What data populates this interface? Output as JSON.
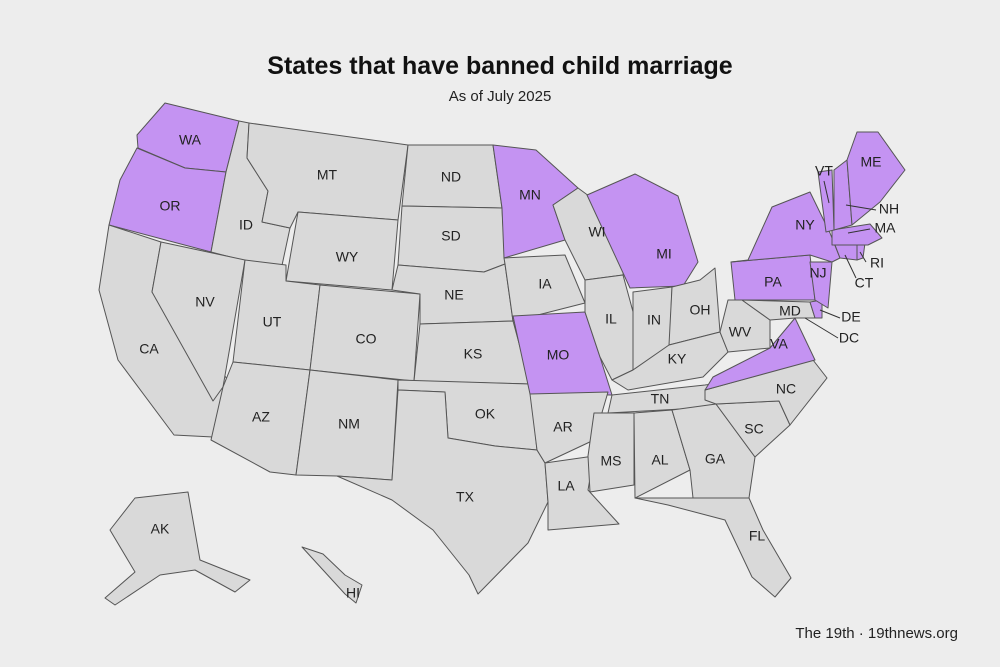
{
  "title": "States that have banned child marriage",
  "subtitle": "As of July 2025",
  "credit": "The 19th · 19thnews.org",
  "colors": {
    "banned": "#c493f2",
    "not_banned": "#d9d9d9",
    "border": "#555555"
  },
  "states": [
    {
      "code": "WA",
      "label": "WA",
      "banned": true
    },
    {
      "code": "OR",
      "label": "OR",
      "banned": true
    },
    {
      "code": "CA",
      "label": "CA",
      "banned": false
    },
    {
      "code": "ID",
      "label": "ID",
      "banned": false
    },
    {
      "code": "NV",
      "label": "NV",
      "banned": false
    },
    {
      "code": "MT",
      "label": "MT",
      "banned": false
    },
    {
      "code": "WY",
      "label": "WY",
      "banned": false
    },
    {
      "code": "UT",
      "label": "UT",
      "banned": false
    },
    {
      "code": "AZ",
      "label": "AZ",
      "banned": false
    },
    {
      "code": "CO",
      "label": "CO",
      "banned": false
    },
    {
      "code": "NM",
      "label": "NM",
      "banned": false
    },
    {
      "code": "ND",
      "label": "ND",
      "banned": false
    },
    {
      "code": "SD",
      "label": "SD",
      "banned": false
    },
    {
      "code": "NE",
      "label": "NE",
      "banned": false
    },
    {
      "code": "KS",
      "label": "KS",
      "banned": false
    },
    {
      "code": "OK",
      "label": "OK",
      "banned": false
    },
    {
      "code": "TX",
      "label": "TX",
      "banned": false
    },
    {
      "code": "MN",
      "label": "MN",
      "banned": true
    },
    {
      "code": "IA",
      "label": "IA",
      "banned": false
    },
    {
      "code": "MO",
      "label": "MO",
      "banned": true
    },
    {
      "code": "AR",
      "label": "AR",
      "banned": false
    },
    {
      "code": "LA",
      "label": "LA",
      "banned": false
    },
    {
      "code": "WI",
      "label": "WI",
      "banned": false
    },
    {
      "code": "IL",
      "label": "IL",
      "banned": false
    },
    {
      "code": "MI",
      "label": "MI",
      "banned": true
    },
    {
      "code": "IN",
      "label": "IN",
      "banned": false
    },
    {
      "code": "OH",
      "label": "OH",
      "banned": false
    },
    {
      "code": "KY",
      "label": "KY",
      "banned": false
    },
    {
      "code": "TN",
      "label": "TN",
      "banned": false
    },
    {
      "code": "MS",
      "label": "MS",
      "banned": false
    },
    {
      "code": "AL",
      "label": "AL",
      "banned": false
    },
    {
      "code": "GA",
      "label": "GA",
      "banned": false
    },
    {
      "code": "FL",
      "label": "FL",
      "banned": false
    },
    {
      "code": "SC",
      "label": "SC",
      "banned": false
    },
    {
      "code": "NC",
      "label": "NC",
      "banned": false
    },
    {
      "code": "VA",
      "label": "VA",
      "banned": true
    },
    {
      "code": "WV",
      "label": "WV",
      "banned": false
    },
    {
      "code": "MD",
      "label": "MD",
      "banned": false
    },
    {
      "code": "DE",
      "label": "DE",
      "banned": true
    },
    {
      "code": "DC",
      "label": "DC",
      "banned": false
    },
    {
      "code": "PA",
      "label": "PA",
      "banned": true
    },
    {
      "code": "NJ",
      "label": "NJ",
      "banned": true
    },
    {
      "code": "NY",
      "label": "NY",
      "banned": true
    },
    {
      "code": "CT",
      "label": "CT",
      "banned": true
    },
    {
      "code": "RI",
      "label": "RI",
      "banned": true
    },
    {
      "code": "MA",
      "label": "MA",
      "banned": true
    },
    {
      "code": "VT",
      "label": "VT",
      "banned": true
    },
    {
      "code": "NH",
      "label": "NH",
      "banned": true
    },
    {
      "code": "ME",
      "label": "ME",
      "banned": true
    },
    {
      "code": "AK",
      "label": "AK",
      "banned": false
    },
    {
      "code": "HI",
      "label": "HI",
      "banned": false
    }
  ]
}
